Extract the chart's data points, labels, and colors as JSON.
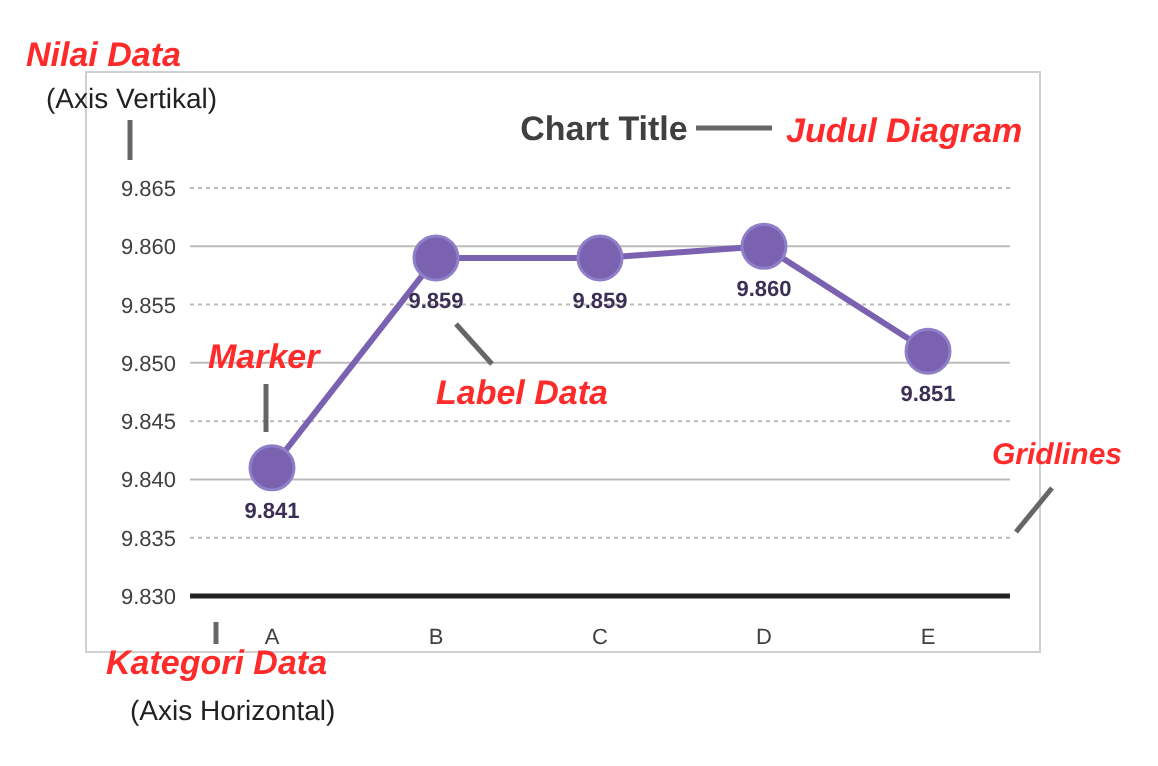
{
  "chart_data": {
    "type": "line",
    "title": "Chart Title",
    "categories": [
      "A",
      "B",
      "C",
      "D",
      "E"
    ],
    "series": [
      {
        "color": "#7a62b0",
        "values": [
          9.841,
          9.859,
          9.859,
          9.86,
          9.851
        ],
        "value_labels": [
          "9.841",
          "9.859",
          "9.859",
          "9.860",
          "9.851"
        ]
      }
    ],
    "ylim": [
      9.83,
      9.865
    ],
    "yticks": [
      {
        "value": 9.83,
        "label": "9.830"
      },
      {
        "value": 9.835,
        "label": "9.835"
      },
      {
        "value": 9.84,
        "label": "9.840"
      },
      {
        "value": 9.845,
        "label": "9.845"
      },
      {
        "value": 9.85,
        "label": "9.850"
      },
      {
        "value": 9.855,
        "label": "9.855"
      },
      {
        "value": 9.86,
        "label": "9.860"
      },
      {
        "value": 9.865,
        "label": "9.865"
      }
    ],
    "grid": "y",
    "marker": "circle",
    "line_style": "solid",
    "annotations": [
      "Nilai Data",
      "(Axis Vertikal)",
      "Judul Diagram",
      "Marker",
      "Label Data",
      "Gridlines",
      "Kategori Data",
      "(Axis Horizontal)"
    ]
  }
}
